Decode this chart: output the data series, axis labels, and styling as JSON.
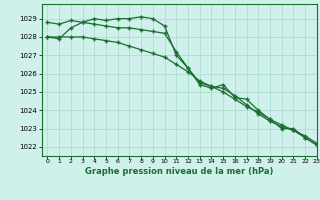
{
  "xlabel": "Graphe pression niveau de la mer (hPa)",
  "xlim": [
    -0.5,
    23
  ],
  "ylim": [
    1021.5,
    1029.8
  ],
  "yticks": [
    1022,
    1023,
    1024,
    1025,
    1026,
    1027,
    1028,
    1029
  ],
  "xticks": [
    0,
    1,
    2,
    3,
    4,
    5,
    6,
    7,
    8,
    9,
    10,
    11,
    12,
    13,
    14,
    15,
    16,
    17,
    18,
    19,
    20,
    21,
    22,
    23
  ],
  "background_color": "#cff0eb",
  "grid_color": "#a8d8cc",
  "line_color": "#1a6e2e",
  "series1_x": [
    0,
    1,
    2,
    3,
    4,
    5,
    6,
    7,
    8,
    9,
    10,
    11,
    12,
    13,
    14,
    15,
    16,
    17,
    18,
    19,
    20,
    21,
    22,
    23
  ],
  "series1_y": [
    1028.8,
    1028.7,
    1028.9,
    1028.8,
    1028.7,
    1028.6,
    1028.5,
    1028.5,
    1028.4,
    1028.3,
    1028.2,
    1027.2,
    1026.3,
    1025.5,
    1025.3,
    1025.2,
    1024.8,
    1024.3,
    1023.8,
    1023.4,
    1023.1,
    1022.9,
    1022.5,
    1022.1
  ],
  "series2_x": [
    0,
    1,
    2,
    3,
    4,
    5,
    6,
    7,
    8,
    9,
    10,
    11,
    12,
    13,
    14,
    15,
    16,
    17,
    18,
    19,
    20,
    21,
    22,
    23
  ],
  "series2_y": [
    1028.0,
    1027.9,
    1028.5,
    1028.8,
    1029.0,
    1028.9,
    1029.0,
    1029.0,
    1029.1,
    1029.0,
    1028.6,
    1027.0,
    1026.3,
    1025.4,
    1025.2,
    1025.4,
    1024.7,
    1024.6,
    1024.0,
    1023.5,
    1023.0,
    1023.0,
    1022.5,
    1022.1
  ],
  "series3_x": [
    0,
    1,
    2,
    3,
    4,
    5,
    6,
    7,
    8,
    9,
    10,
    11,
    12,
    13,
    14,
    15,
    16,
    17,
    18,
    19,
    20,
    21,
    22,
    23
  ],
  "series3_y": [
    1028.0,
    1028.0,
    1028.0,
    1028.0,
    1027.9,
    1027.8,
    1027.7,
    1027.5,
    1027.3,
    1027.1,
    1026.9,
    1026.5,
    1026.1,
    1025.6,
    1025.3,
    1025.0,
    1024.6,
    1024.2,
    1023.9,
    1023.5,
    1023.2,
    1022.9,
    1022.6,
    1022.2
  ]
}
